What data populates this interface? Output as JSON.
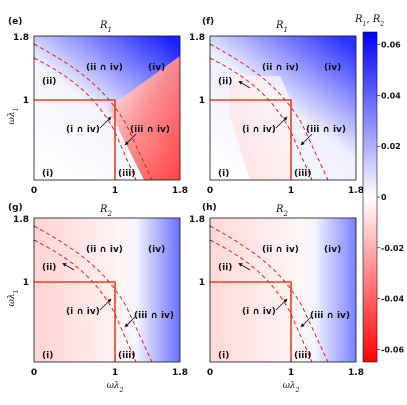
{
  "chart_data": [
    {
      "type": "heatmap",
      "panel": "(e)",
      "title": "R_1",
      "xlabel": "",
      "ylabel": "ωλ1",
      "xlim": [
        0,
        1.8
      ],
      "ylim": [
        0,
        1.8
      ],
      "xticks": [
        "0",
        "1",
        "1.8"
      ],
      "yticks": [
        "1",
        "1.8"
      ],
      "regions": [
        "(i)",
        "(ii)",
        "(iii)",
        "(ii ∩ iv)",
        "(iv)",
        "(i ∩ iv)",
        "(iii ∩ iv)"
      ],
      "boundary_solid": [
        [
          0,
          1
        ],
        [
          1,
          1
        ],
        [
          1,
          0
        ]
      ],
      "boundary_dashed_upper": [
        [
          0,
          1.6
        ],
        [
          0.5,
          1.35
        ],
        [
          1.0,
          0.95
        ],
        [
          1.45,
          0
        ]
      ],
      "boundary_dashed_lower": [
        [
          0,
          1.45
        ],
        [
          0.5,
          1.2
        ],
        [
          0.9,
          0.85
        ],
        [
          1.25,
          0
        ]
      ]
    },
    {
      "type": "heatmap",
      "panel": "(f)",
      "title": "R_1",
      "xlabel": "",
      "ylabel": "",
      "xlim": [
        0,
        1.8
      ],
      "ylim": [
        0,
        1.8
      ],
      "xticks": [
        "0",
        "1",
        "1.8"
      ],
      "yticks": [
        "1",
        "1.8"
      ],
      "regions": [
        "(i)",
        "(ii)",
        "(iii)",
        "(ii ∩ iv)",
        "(iv)",
        "(i ∩ iv)",
        "(iii ∩ iv)"
      ],
      "boundary_solid": [
        [
          0,
          1
        ],
        [
          1,
          1
        ],
        [
          1,
          0
        ]
      ],
      "boundary_dashed_upper": [
        [
          0,
          1.6
        ],
        [
          0.5,
          1.35
        ],
        [
          1.0,
          0.95
        ],
        [
          1.45,
          0
        ]
      ],
      "boundary_dashed_lower": [
        [
          0,
          1.45
        ],
        [
          0.5,
          1.2
        ],
        [
          0.9,
          0.85
        ],
        [
          1.25,
          0
        ]
      ]
    },
    {
      "type": "heatmap",
      "panel": "(g)",
      "title": "R_2",
      "xlabel": "ωλ2",
      "ylabel": "ωλ1",
      "xlim": [
        0,
        1.8
      ],
      "ylim": [
        0,
        1.8
      ],
      "xticks": [
        "0",
        "1",
        "1.8"
      ],
      "yticks": [
        "1",
        "1.8"
      ],
      "regions": [
        "(i)",
        "(ii)",
        "(iii)",
        "(ii ∩ iv)",
        "(iv)",
        "(i ∩ iv)",
        "(iii ∩ iv)"
      ],
      "boundary_solid": [
        [
          0,
          1
        ],
        [
          1,
          1
        ],
        [
          1,
          0
        ]
      ],
      "boundary_dashed_upper": [
        [
          0,
          1.6
        ],
        [
          0.5,
          1.35
        ],
        [
          1.0,
          0.95
        ],
        [
          1.45,
          0
        ]
      ],
      "boundary_dashed_lower": [
        [
          0,
          1.45
        ],
        [
          0.5,
          1.2
        ],
        [
          0.9,
          0.85
        ],
        [
          1.25,
          0
        ]
      ]
    },
    {
      "type": "heatmap",
      "panel": "(h)",
      "title": "R_2",
      "xlabel": "ωλ2",
      "ylabel": "",
      "xlim": [
        0,
        1.8
      ],
      "ylim": [
        0,
        1.8
      ],
      "xticks": [
        "0",
        "1",
        "1.8"
      ],
      "yticks": [
        "1",
        "1.8"
      ],
      "regions": [
        "(i)",
        "(ii)",
        "(iii)",
        "(ii ∩ iv)",
        "(iv)",
        "(i ∩ iv)",
        "(iii ∩ iv)"
      ],
      "boundary_solid": [
        [
          0,
          1
        ],
        [
          1,
          1
        ],
        [
          1,
          0
        ]
      ],
      "boundary_dashed_upper": [
        [
          0,
          1.6
        ],
        [
          0.5,
          1.35
        ],
        [
          1.0,
          0.95
        ],
        [
          1.45,
          0
        ]
      ],
      "boundary_dashed_lower": [
        [
          0,
          1.45
        ],
        [
          0.5,
          1.2
        ],
        [
          0.9,
          0.85
        ],
        [
          1.25,
          0
        ]
      ]
    }
  ],
  "colorbar": {
    "label": "R_1, R_2",
    "range": [
      -0.065,
      0.065
    ],
    "ticks": [
      0.06,
      0.04,
      0.02,
      0,
      -0.02,
      -0.04,
      -0.06
    ],
    "tick_labels": [
      "0.06",
      "0.04",
      "0.02",
      "0",
      "-0.02",
      "-0.04",
      "-0.06"
    ],
    "colormap": [
      "#ff0000",
      "#ffffff",
      "#0000ff"
    ]
  }
}
